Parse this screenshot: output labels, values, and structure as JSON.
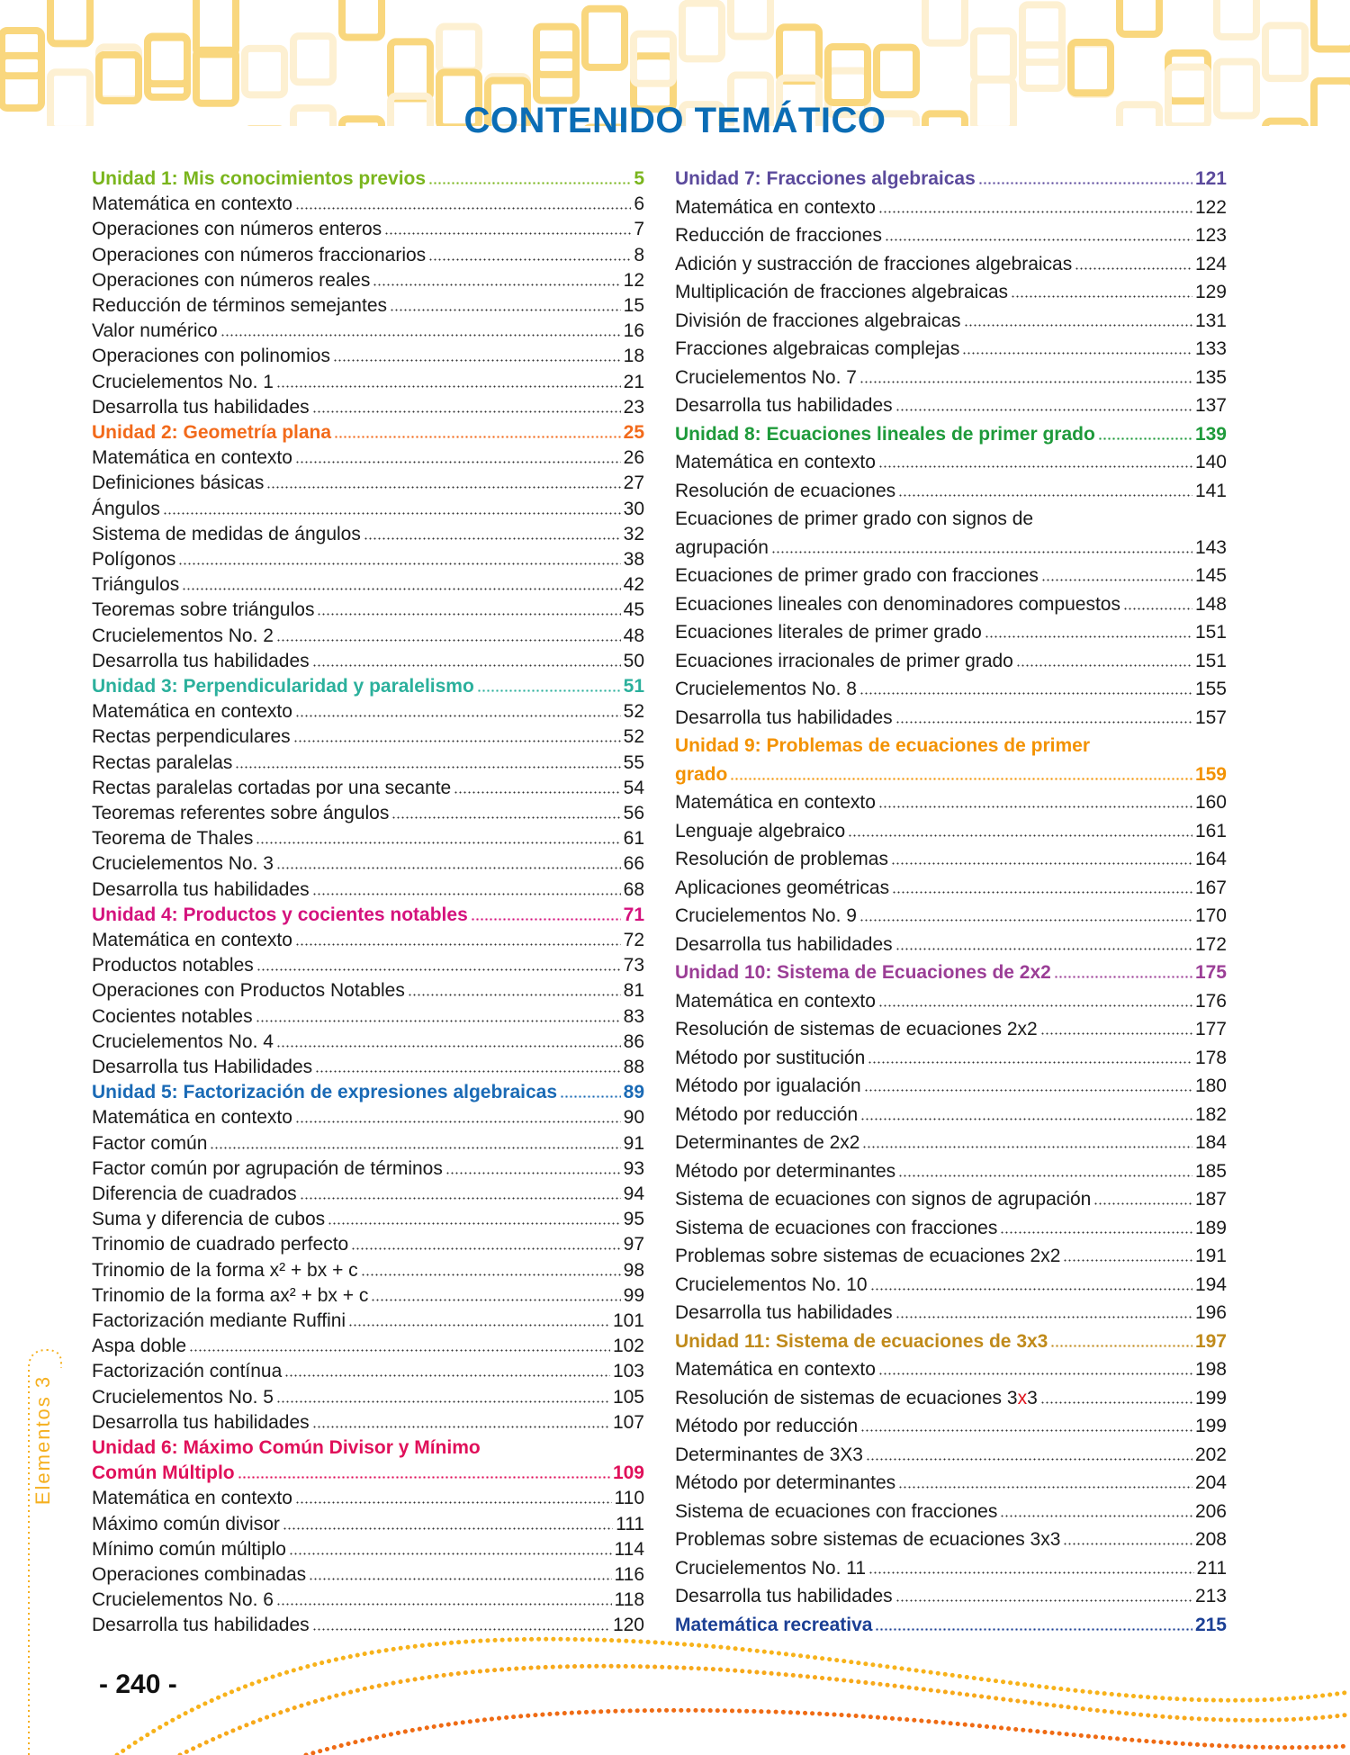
{
  "title": "CONTENIDO TEMÁTICO",
  "side_label": "Elementos 3",
  "page_number": "- 240 -",
  "colors": {
    "title": "#0b6db5",
    "text": "#1a1a1a",
    "decor_yellow": "#f9d77e",
    "decor_orange": "#f07b16",
    "side": "#f5b020"
  },
  "left_column": [
    {
      "kind": "unit",
      "label": "Unidad 1: Mis conocimientos previos",
      "page": "5",
      "color": "#7ab51d"
    },
    {
      "kind": "item",
      "label": "Matemática en contexto",
      "page": "6"
    },
    {
      "kind": "item",
      "label": "Operaciones con números enteros",
      "page": "7"
    },
    {
      "kind": "item",
      "label": "Operaciones con números fraccionarios",
      "page": "8"
    },
    {
      "kind": "item",
      "label": "Operaciones con números reales",
      "page": "12"
    },
    {
      "kind": "item",
      "label": "Reducción de términos semejantes",
      "page": "15"
    },
    {
      "kind": "item",
      "label": "Valor numérico",
      "page": "16"
    },
    {
      "kind": "item",
      "label": "Operaciones con polinomios",
      "page": "18"
    },
    {
      "kind": "item",
      "label": "Crucielementos No. 1",
      "page": "21"
    },
    {
      "kind": "item",
      "label": "Desarrolla tus habilidades",
      "page": "23"
    },
    {
      "kind": "unit",
      "label": "Unidad 2: Geometría plana",
      "page": "25",
      "color": "#f26a1b"
    },
    {
      "kind": "item",
      "label": "Matemática en contexto",
      "page": "26"
    },
    {
      "kind": "item",
      "label": "Definiciones básicas",
      "page": "27"
    },
    {
      "kind": "item",
      "label": "Ángulos",
      "page": "30"
    },
    {
      "kind": "item",
      "label": "Sistema de medidas de ángulos",
      "page": "32"
    },
    {
      "kind": "item",
      "label": "Polígonos",
      "page": "38"
    },
    {
      "kind": "item",
      "label": "Triángulos",
      "page": "42"
    },
    {
      "kind": "item",
      "label": "Teoremas sobre triángulos",
      "page": "45"
    },
    {
      "kind": "item",
      "label": "Crucielementos No. 2",
      "page": "48"
    },
    {
      "kind": "item",
      "label": "Desarrolla tus habilidades",
      "page": "50"
    },
    {
      "kind": "unit",
      "label": "Unidad 3: Perpendicularidad y paralelismo",
      "page": "51",
      "color": "#2bb09c"
    },
    {
      "kind": "item",
      "label": "Matemática en contexto",
      "page": "52"
    },
    {
      "kind": "item",
      "label": "Rectas perpendiculares",
      "page": "52"
    },
    {
      "kind": "item",
      "label": "Rectas paralelas",
      "page": "55"
    },
    {
      "kind": "item",
      "label": "Rectas paralelas cortadas por una secante",
      "page": "54"
    },
    {
      "kind": "item",
      "label": "Teoremas referentes sobre ángulos",
      "page": "56"
    },
    {
      "kind": "item",
      "label": "Teorema de Thales",
      "page": "61"
    },
    {
      "kind": "item",
      "label": "Crucielementos No. 3",
      "page": "66"
    },
    {
      "kind": "item",
      "label": "Desarrolla tus habilidades",
      "page": "68"
    },
    {
      "kind": "unit",
      "label": "Unidad 4: Productos y cocientes notables",
      "page": "71",
      "color": "#d4127d"
    },
    {
      "kind": "item",
      "label": "Matemática en contexto",
      "page": "72"
    },
    {
      "kind": "item",
      "label": "Productos notables",
      "page": "73"
    },
    {
      "kind": "item",
      "label": "Operaciones con Productos Notables",
      "page": "81"
    },
    {
      "kind": "item",
      "label": "Cocientes notables",
      "page": "83"
    },
    {
      "kind": "item",
      "label": "Crucielementos No. 4",
      "page": "86"
    },
    {
      "kind": "item",
      "label": "Desarrolla tus Habilidades",
      "page": "88"
    },
    {
      "kind": "unit",
      "label": "Unidad 5: Factorización de expresiones algebraicas",
      "page": "89",
      "color": "#1a6ab5"
    },
    {
      "kind": "item",
      "label": "Matemática en contexto",
      "page": "90"
    },
    {
      "kind": "item",
      "label": "Factor común",
      "page": "91"
    },
    {
      "kind": "item",
      "label": "Factor común por agrupación de términos",
      "page": "93"
    },
    {
      "kind": "item",
      "label": "Diferencia de cuadrados",
      "page": "94"
    },
    {
      "kind": "item",
      "label": "Suma y diferencia de cubos",
      "page": "95"
    },
    {
      "kind": "item",
      "label": "Trinomio de cuadrado perfecto",
      "page": "97"
    },
    {
      "kind": "item",
      "label": "Trinomio de la forma x² + bx + c",
      "page": "98"
    },
    {
      "kind": "item",
      "label": "Trinomio de la forma ax² + bx + c",
      "page": "99"
    },
    {
      "kind": "item",
      "label": "Factorización mediante Ruffini",
      "page": "101"
    },
    {
      "kind": "item",
      "label": "Aspa doble",
      "page": "102"
    },
    {
      "kind": "item",
      "label": "Factorización contínua",
      "page": "103"
    },
    {
      "kind": "item",
      "label": "Crucielementos No. 5",
      "page": "105"
    },
    {
      "kind": "item",
      "label": "Desarrolla tus habilidades",
      "page": "107"
    },
    {
      "kind": "unit",
      "label": "Unidad 6: Máximo Común Divisor y Mínimo",
      "cont": "Común Múltiplo",
      "page": "109",
      "color": "#e0105a"
    },
    {
      "kind": "item",
      "label": "Matemática en contexto",
      "page": "110"
    },
    {
      "kind": "item",
      "label": "Máximo común divisor",
      "page": "111"
    },
    {
      "kind": "item",
      "label": "Mínimo común múltiplo",
      "page": "114"
    },
    {
      "kind": "item",
      "label": "Operaciones combinadas",
      "page": "116"
    },
    {
      "kind": "item",
      "label": "Crucielementos No. 6",
      "page": "118"
    },
    {
      "kind": "item",
      "label": "Desarrolla tus habilidades",
      "page": "120"
    }
  ],
  "right_column": [
    {
      "kind": "unit",
      "label": "Unidad 7: Fracciones algebraicas",
      "page": "121",
      "color": "#5b4a9c"
    },
    {
      "kind": "item",
      "label": "Matemática en contexto",
      "page": "122"
    },
    {
      "kind": "item",
      "label": "Reducción de fracciones",
      "page": "123"
    },
    {
      "kind": "item",
      "label": "Adición y sustracción de fracciones algebraicas",
      "page": "124"
    },
    {
      "kind": "item",
      "label": "Multiplicación de fracciones algebraicas",
      "page": "129"
    },
    {
      "kind": "item",
      "label": "División de fracciones algebraicas",
      "page": "131"
    },
    {
      "kind": "item",
      "label": "Fracciones algebraicas complejas",
      "page": "133"
    },
    {
      "kind": "item",
      "label": "Crucielementos No. 7",
      "page": "135"
    },
    {
      "kind": "item",
      "label": "Desarrolla tus habilidades",
      "page": "137"
    },
    {
      "kind": "unit",
      "label": "Unidad 8: Ecuaciones lineales de primer grado",
      "page": "139",
      "color": "#1e9a3a"
    },
    {
      "kind": "item",
      "label": "Matemática en contexto",
      "page": "140"
    },
    {
      "kind": "item",
      "label": "Resolución de ecuaciones",
      "page": "141"
    },
    {
      "kind": "item",
      "label": "Ecuaciones de primer grado con signos de",
      "cont": "agrupación",
      "page": "143"
    },
    {
      "kind": "item",
      "label": "Ecuaciones de primer grado con fracciones",
      "page": "145"
    },
    {
      "kind": "item",
      "label": "Ecuaciones lineales con denominadores compuestos",
      "page": "148"
    },
    {
      "kind": "item",
      "label": "Ecuaciones literales de primer grado",
      "page": "151"
    },
    {
      "kind": "item",
      "label": "Ecuaciones irracionales de primer grado",
      "page": "151"
    },
    {
      "kind": "item",
      "label": "Crucielementos No. 8",
      "page": "155"
    },
    {
      "kind": "item",
      "label": "Desarrolla tus habilidades",
      "page": "157"
    },
    {
      "kind": "unit",
      "label": "Unidad 9: Problemas de ecuaciones de primer",
      "cont": "grado",
      "page": "159",
      "color": "#f39200"
    },
    {
      "kind": "item",
      "label": "Matemática en contexto",
      "page": "160"
    },
    {
      "kind": "item",
      "label": "Lenguaje algebraico",
      "page": "161"
    },
    {
      "kind": "item",
      "label": "Resolución de problemas",
      "page": "164"
    },
    {
      "kind": "item",
      "label": "Aplicaciones geométricas",
      "page": "167"
    },
    {
      "kind": "item",
      "label": "Crucielementos No. 9",
      "page": "170"
    },
    {
      "kind": "item",
      "label": "Desarrolla tus habilidades",
      "page": "172"
    },
    {
      "kind": "unit",
      "label": "Unidad 10: Sistema de Ecuaciones de 2x2",
      "page": "175",
      "color": "#9b3e96"
    },
    {
      "kind": "item",
      "label": "Matemática en contexto",
      "page": "176"
    },
    {
      "kind": "item",
      "label": "Resolución de sistemas de ecuaciones 2x2",
      "page": "177"
    },
    {
      "kind": "item",
      "label": "Método por sustitución",
      "page": "178"
    },
    {
      "kind": "item",
      "label": "Método por igualación",
      "page": "180"
    },
    {
      "kind": "item",
      "label": "Método por reducción",
      "page": "182"
    },
    {
      "kind": "item",
      "label": "Determinantes de 2x2",
      "page": "184"
    },
    {
      "kind": "item",
      "label": "Método por determinantes",
      "page": "185"
    },
    {
      "kind": "item",
      "label": "Sistema de ecuaciones con signos de agrupación",
      "page": "187"
    },
    {
      "kind": "item",
      "label": "Sistema de ecuaciones con fracciones",
      "page": "189"
    },
    {
      "kind": "item",
      "label": "Problemas sobre sistemas de ecuaciones 2x2",
      "page": "191"
    },
    {
      "kind": "item",
      "label": "Crucielementos No. 10",
      "page": "194"
    },
    {
      "kind": "item",
      "label": "Desarrolla tus habilidades",
      "page": "196"
    },
    {
      "kind": "unit",
      "label": "Unidad 11: Sistema de ecuaciones de 3x3",
      "page": "197",
      "color": "#c08a1a"
    },
    {
      "kind": "item",
      "label": "Matemática en contexto",
      "page": "198"
    },
    {
      "kind": "item",
      "label": "Resolución de sistemas de ecuaciones 3x3",
      "label_parts": [
        "Resolución de sistemas de ecuaciones 3",
        "x",
        "3"
      ],
      "page": "199"
    },
    {
      "kind": "item",
      "label": "Método por reducción",
      "page": "199"
    },
    {
      "kind": "item",
      "label": "Determinantes de 3X3",
      "page": "202"
    },
    {
      "kind": "item",
      "label": "Método por determinantes",
      "page": "204"
    },
    {
      "kind": "item",
      "label": "Sistema de ecuaciones con fracciones",
      "page": "206"
    },
    {
      "kind": "item",
      "label": "Problemas sobre sistemas de ecuaciones 3x3",
      "page": "208"
    },
    {
      "kind": "item",
      "label": "Crucielementos No. 11",
      "page": "211"
    },
    {
      "kind": "item",
      "label": "Desarrolla tus habilidades",
      "page": "213"
    },
    {
      "kind": "unit",
      "label": "Matemática recreativa",
      "page": "215",
      "color": "#1b3f94"
    }
  ]
}
